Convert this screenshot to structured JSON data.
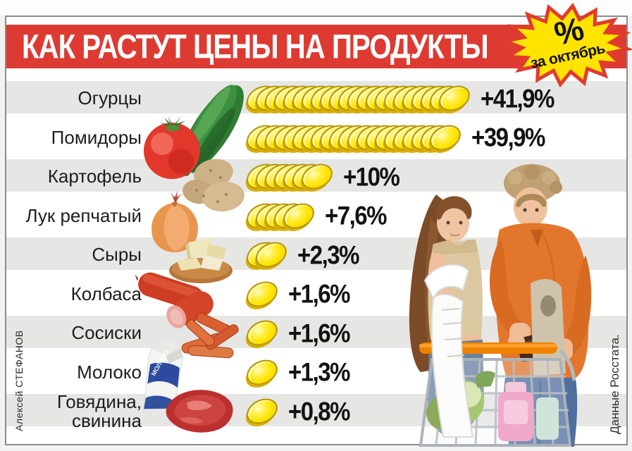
{
  "header": {
    "title": "КАК РАСТУТ ЦЕНЫ НА ПРОДУКТЫ",
    "badge": {
      "percent_symbol": "%",
      "period": "за октябрь"
    }
  },
  "credits": {
    "photographer": "Алексей СТЕФАНОВ",
    "source": "Данные Росстата."
  },
  "colors": {
    "header_red": "#dd3a31",
    "badge_yellow": "#ffe400",
    "badge_border_red": "#e23b2e",
    "band_gray": "#e6e6e5",
    "coin_yellow": "#ffe400",
    "text_black": "#121212"
  },
  "chart_data": {
    "type": "bar",
    "title": "КАК РАСТУТ ЦЕНЫ НА ПРОДУКТЫ",
    "subtitle": "% за октябрь",
    "categories": [
      "Огурцы",
      "Помидоры",
      "Картофель",
      "Лук репчатый",
      "Сыры",
      "Колбаса",
      "Сосиски",
      "Молоко",
      "Говядина, свинина"
    ],
    "values": [
      41.9,
      39.9,
      10,
      7.6,
      2.3,
      1.6,
      1.6,
      1.3,
      0.8
    ],
    "value_labels": [
      "+41,9%",
      "+39,9%",
      "+10%",
      "+7,6%",
      "+2,3%",
      "+1,6%",
      "+1,6%",
      "+1,3%",
      "+0,8%"
    ],
    "coin_counts": [
      22,
      21,
      7,
      5,
      2,
      1,
      1,
      1,
      1
    ],
    "unit": "percent price change for October",
    "icon_names": [
      "cucumber-icon",
      "tomato-icon",
      "potatoes-icon",
      "onion-icon",
      "cheese-icon",
      "sausage-icon",
      "wieners-icon",
      "milk-icon",
      "meat-icon"
    ],
    "legend_position": "none",
    "grid": false,
    "source": "Данные Росстата."
  }
}
